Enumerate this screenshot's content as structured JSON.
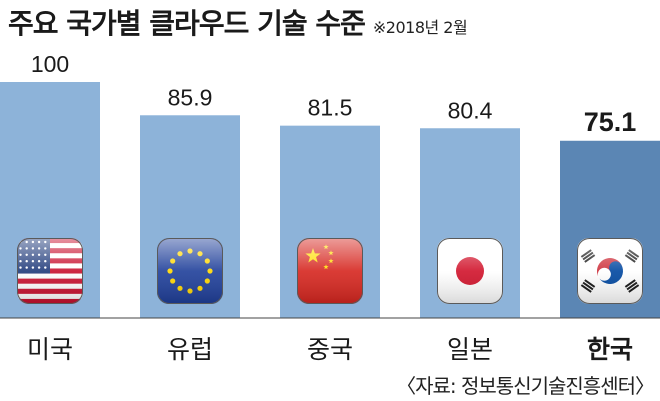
{
  "title": "주요 국가별 클라우드 기술 수준",
  "note": "※2018년 2월",
  "source": "〈자료: 정보통신기술진흥센터〉",
  "colors": {
    "bar": "#8db3d9",
    "highlight_bar": "#5b86b4",
    "value_text": "#1a1a1a",
    "axis": "#444444"
  },
  "chart_data": {
    "type": "bar",
    "categories": [
      "미국",
      "유럽",
      "중국",
      "일본",
      "한국"
    ],
    "values": [
      100,
      85.9,
      81.5,
      80.4,
      75.1
    ],
    "value_labels": [
      "100",
      "85.9",
      "81.5",
      "80.4",
      "75.1"
    ],
    "highlight": "한국",
    "flags": [
      "usa-flag-icon",
      "eu-flag-icon",
      "china-flag-icon",
      "japan-flag-icon",
      "korea-flag-icon"
    ],
    "title": "주요 국가별 클라우드 기술 수준",
    "xlabel": "",
    "ylabel": "",
    "ylim": [
      0,
      100
    ],
    "grid": false,
    "legend": "none"
  }
}
